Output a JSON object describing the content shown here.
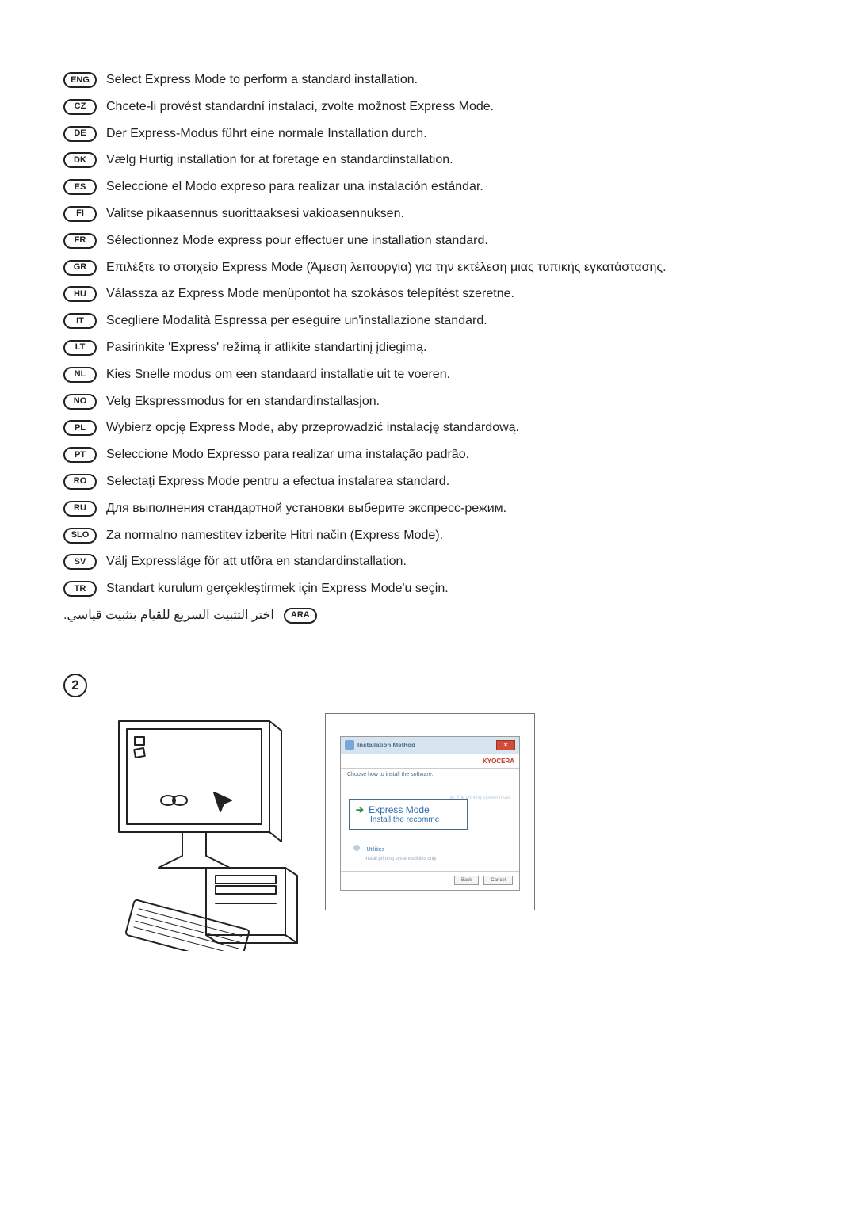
{
  "step_number": "2",
  "languages": [
    {
      "code": "ENG",
      "text": "Select Express Mode to perform a standard installation."
    },
    {
      "code": "CZ",
      "text": "Chcete-li provést standardní instalaci, zvolte možnost Express Mode."
    },
    {
      "code": "DE",
      "text": "Der Express-Modus führt eine normale Installation durch."
    },
    {
      "code": "DK",
      "text": "Vælg Hurtig installation for at foretage en standardinstallation."
    },
    {
      "code": "ES",
      "text": "Seleccione el Modo expreso para realizar una instalación estándar."
    },
    {
      "code": "FI",
      "text": "Valitse pikaasennus suorittaaksesi vakioasennuksen."
    },
    {
      "code": "FR",
      "text": "Sélectionnez Mode express pour effectuer une installation standard."
    },
    {
      "code": "GR",
      "text": "Επιλέξτε το στοιχείο Express Mode (Άμεση λειτουργία) για την εκτέλεση μιας τυπικής εγκατάστασης."
    },
    {
      "code": "HU",
      "text": "Válassza az Express Mode menüpontot ha szokásos telepítést szeretne."
    },
    {
      "code": "IT",
      "text": "Scegliere Modalità Espressa per eseguire un'installazione standard."
    },
    {
      "code": "LT",
      "text": "Pasirinkite 'Express' režimą ir atlikite standartinį įdiegimą."
    },
    {
      "code": "NL",
      "text": "Kies Snelle modus om een standaard installatie uit te voeren."
    },
    {
      "code": "NO",
      "text": "Velg Ekspressmodus for en standardinstallasjon."
    },
    {
      "code": "PL",
      "text": "Wybierz opcję Express Mode, aby przeprowadzić instalację standardową."
    },
    {
      "code": "PT",
      "text": "Seleccione Modo Expresso para realizar uma instalação padrão."
    },
    {
      "code": "RO",
      "text": "Selectaţi Express Mode pentru a efectua instalarea standard."
    },
    {
      "code": "RU",
      "text": "Для выполнения стандартной установки выберите экспресс-режим."
    },
    {
      "code": "SLO",
      "text": "Za normalno namestitev izberite Hitri način (Express Mode)."
    },
    {
      "code": "SV",
      "text": "Välj Expressläge för att utföra en standardinstallation."
    },
    {
      "code": "TR",
      "text": "Standart kurulum gerçekleştirmek için Express Mode'u seçin."
    },
    {
      "code": "ARA",
      "text": "اختر التثبيت السريع للقيام بتثبيت قياسي.",
      "rtl": true
    }
  ],
  "dialog": {
    "window_title": "Installation Method",
    "brand": "KYOCERA",
    "choose_label": "Choose how to install the software.",
    "faded_hint": "te: The printing system must",
    "express_title": "Express Mode",
    "express_sub": "Install the recomme",
    "utilities_label": "Utilities",
    "utilities_sub": "Install printing system utilities only",
    "btn_back": "Back",
    "btn_cancel": "Cancel",
    "close_glyph": "✕"
  }
}
